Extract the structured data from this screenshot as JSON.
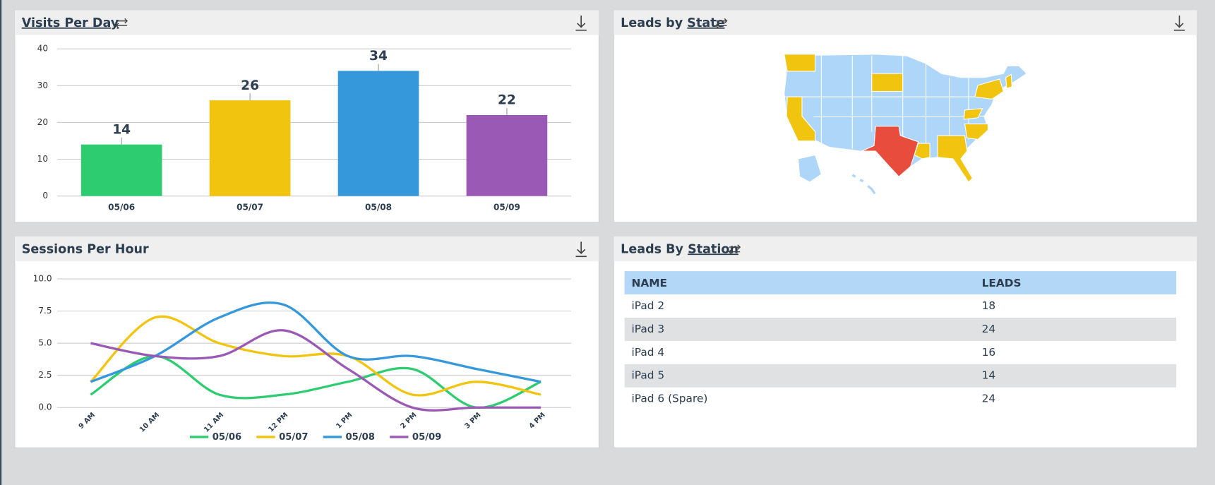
{
  "chart_data": [
    {
      "type": "bar",
      "title": "Visits Per Day",
      "categories": [
        "05/06",
        "05/07",
        "05/08",
        "05/09"
      ],
      "values": [
        14,
        26,
        34,
        22
      ],
      "colors": [
        "#2ecc71",
        "#f1c40f",
        "#3498db",
        "#9b59b6"
      ],
      "ylim": [
        0,
        40
      ],
      "yticks": [
        0,
        10,
        20,
        30,
        40
      ],
      "grid": true
    },
    {
      "type": "line",
      "title": "Sessions Per Hour",
      "categories": [
        "9 AM",
        "10 AM",
        "11 AM",
        "12 PM",
        "1 PM",
        "2 PM",
        "3 PM",
        "4 PM"
      ],
      "series": [
        {
          "name": "05/06",
          "color": "#2ecc71",
          "values": [
            1,
            4,
            1,
            1,
            2,
            3,
            0,
            2
          ]
        },
        {
          "name": "05/07",
          "color": "#f1c40f",
          "values": [
            2,
            7,
            5,
            4,
            4,
            1,
            2,
            1
          ]
        },
        {
          "name": "05/08",
          "color": "#3498db",
          "values": [
            2,
            4,
            7,
            8,
            4,
            4,
            3,
            2
          ]
        },
        {
          "name": "05/09",
          "color": "#9b59b6",
          "values": [
            5,
            4,
            4,
            6,
            3,
            0,
            0,
            0
          ]
        }
      ],
      "ylim": [
        0,
        10
      ],
      "yticks": [
        {
          "value": 0,
          "label": "0.0"
        },
        {
          "value": 2.5,
          "label": "2.5"
        },
        {
          "value": 5,
          "label": "5.0"
        },
        {
          "value": 7.5,
          "label": "7.5"
        },
        {
          "value": 10,
          "label": "10.0"
        }
      ],
      "grid": true,
      "legend": "bottom",
      "smooth": true
    }
  ],
  "map": {
    "title": "Leads by",
    "title_link": "State"
  },
  "table": {
    "title": "Leads By",
    "title_link": "Station",
    "columns": [
      "NAME",
      "LEADS"
    ],
    "rows": [
      [
        "iPad 2",
        "18"
      ],
      [
        "iPad 3",
        "24"
      ],
      [
        "iPad 4",
        "16"
      ],
      [
        "iPad 5",
        "14"
      ],
      [
        "iPad 6 (Spare)",
        "24"
      ]
    ]
  }
}
